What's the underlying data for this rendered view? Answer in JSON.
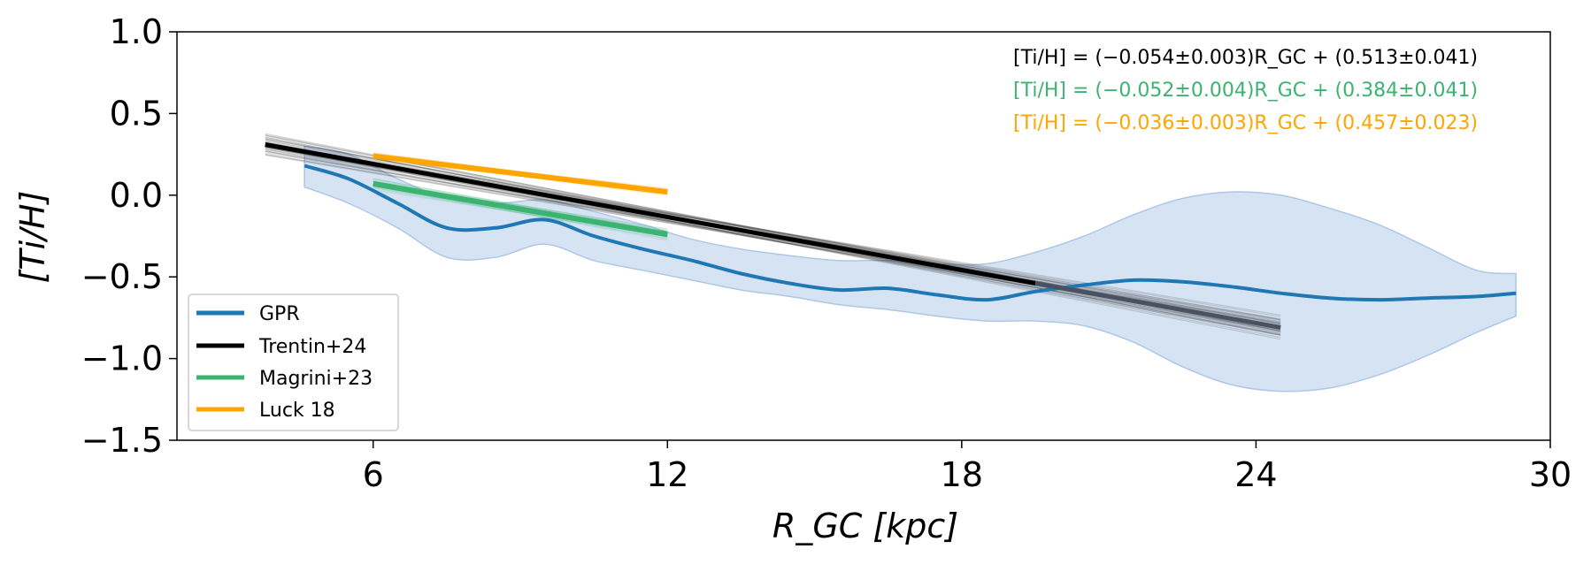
{
  "chart_data": {
    "type": "line",
    "title": "",
    "xlabel": "R_GC [kpc]",
    "ylabel": "[Ti/H]",
    "xlim": [
      2,
      30
    ],
    "ylim": [
      -1.5,
      1.0
    ],
    "x_ticks": [
      6,
      12,
      18,
      24,
      30
    ],
    "x_tick_labels": [
      "6",
      "12",
      "18",
      "24",
      "30"
    ],
    "y_ticks": [
      -1.5,
      -1.0,
      -0.5,
      0.0,
      0.5,
      1.0
    ],
    "y_tick_labels": [
      "−1.5",
      "−1.0",
      "−0.5",
      "0.0",
      "0.5",
      "1.0"
    ],
    "grid": false,
    "legend_position": "lower-left",
    "series": [
      {
        "name": "GPR",
        "color": "#1f77b4",
        "band_color": "#aec7e8",
        "x": [
          4.6,
          5.5,
          6.5,
          7.5,
          8.5,
          9.5,
          10.5,
          11.5,
          12.5,
          13.5,
          14.5,
          15.5,
          16.5,
          17.5,
          18.5,
          19.5,
          20.5,
          21.5,
          22.5,
          23.5,
          24.5,
          25.5,
          26.5,
          27.5,
          28.5,
          29.3
        ],
        "y": [
          0.18,
          0.1,
          -0.05,
          -0.2,
          -0.2,
          -0.15,
          -0.25,
          -0.33,
          -0.4,
          -0.48,
          -0.54,
          -0.58,
          -0.57,
          -0.61,
          -0.64,
          -0.59,
          -0.55,
          -0.52,
          -0.53,
          -0.56,
          -0.6,
          -0.63,
          -0.64,
          -0.63,
          -0.62,
          -0.6
        ],
        "upper": [
          0.3,
          0.25,
          0.1,
          -0.02,
          -0.05,
          -0.03,
          -0.1,
          -0.18,
          -0.27,
          -0.33,
          -0.37,
          -0.4,
          -0.4,
          -0.42,
          -0.42,
          -0.35,
          -0.25,
          -0.12,
          -0.02,
          0.02,
          0.0,
          -0.08,
          -0.18,
          -0.32,
          -0.46,
          -0.48
        ],
        "lower": [
          0.05,
          -0.05,
          -0.2,
          -0.38,
          -0.38,
          -0.3,
          -0.4,
          -0.46,
          -0.52,
          -0.58,
          -0.62,
          -0.67,
          -0.7,
          -0.74,
          -0.77,
          -0.77,
          -0.8,
          -0.9,
          -1.05,
          -1.16,
          -1.2,
          -1.18,
          -1.1,
          -0.98,
          -0.84,
          -0.74
        ]
      },
      {
        "name": "Trentin+24",
        "color": "#000000",
        "x": [
          3.8,
          24.5
        ],
        "y": [
          0.31,
          -0.81
        ]
      },
      {
        "name": "Magrini+23",
        "color": "#3cb371",
        "x": [
          6.0,
          12.0
        ],
        "y": [
          0.07,
          -0.24
        ]
      },
      {
        "name": "Luck 18",
        "color": "#ffa500",
        "x": [
          6.0,
          12.0
        ],
        "y": [
          0.24,
          0.02
        ]
      }
    ],
    "annotations": [
      {
        "text": "[Ti/H] = (−0.054±0.003)R_GC + (0.513±0.041)",
        "color": "#000000"
      },
      {
        "text": "[Ti/H] = (−0.052±0.004)R_GC + (0.384±0.041)",
        "color": "#3cb371"
      },
      {
        "text": "[Ti/H] = (−0.036±0.003)R_GC + (0.457±0.023)",
        "color": "#ffa500"
      }
    ]
  }
}
